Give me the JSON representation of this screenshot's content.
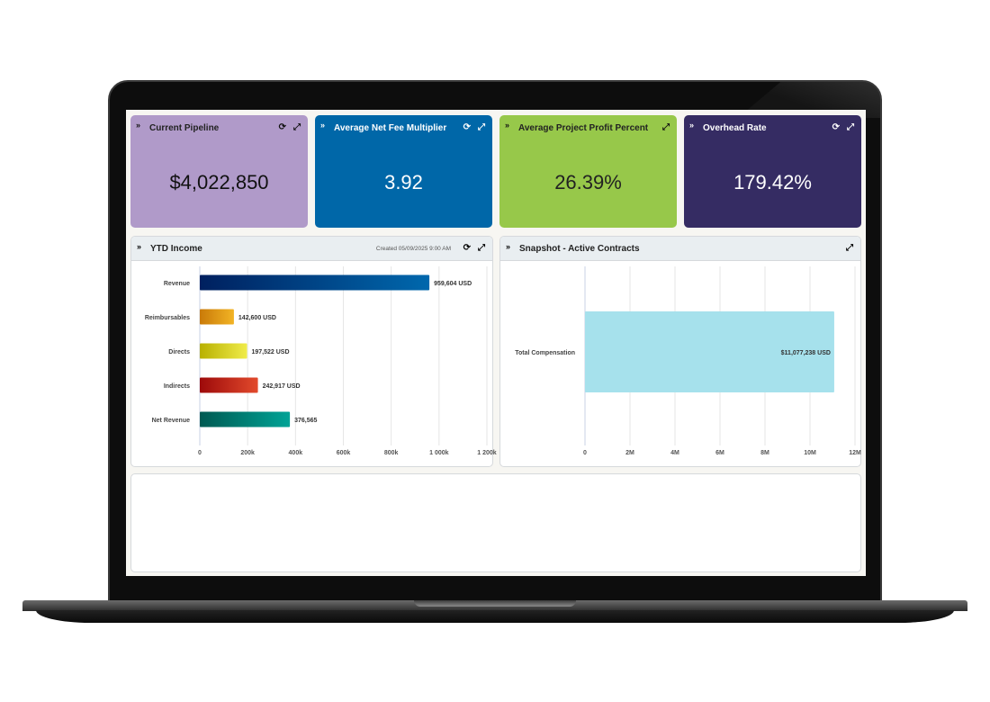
{
  "kpis": [
    {
      "title": "Current Pipeline",
      "value": "$4,022,850",
      "color": "#b09ac9",
      "text_color": "#111111",
      "refresh": true
    },
    {
      "title": "Average Net Fee Multiplier",
      "value": "3.92",
      "color": "#0067a8",
      "text_color": "#ffffff",
      "refresh": true
    },
    {
      "title": "Average Project Profit Percent",
      "value": "26.39%",
      "color": "#97c84a",
      "text_color": "#222222",
      "refresh": false
    },
    {
      "title": "Overhead Rate",
      "value": "179.42%",
      "color": "#352c63",
      "text_color": "#ffffff",
      "refresh": true
    }
  ],
  "ytd": {
    "title": "YTD Income",
    "created": "Created 05/09/2025 9:00 AM"
  },
  "snapshot": {
    "title": "Snapshot - Active Contracts"
  },
  "icons": {
    "collapse": "double-chevron-down-icon",
    "refresh": "refresh-icon",
    "expand": "expand-icon"
  },
  "chart_data": [
    {
      "type": "bar",
      "orientation": "horizontal",
      "title": "YTD Income",
      "categories": [
        "Revenue",
        "Reimbursables",
        "Directs",
        "Indirects",
        "Net Revenue"
      ],
      "values": [
        959604,
        142600,
        197522,
        242917,
        376565
      ],
      "data_labels": [
        "959,604 USD",
        "142,600 USD",
        "197,522 USD",
        "242,917 USD",
        "376,565"
      ],
      "colors": [
        [
          "#00205f",
          "#0068ad"
        ],
        [
          "#c97a08",
          "#f2b425"
        ],
        [
          "#b8b000",
          "#f0ec4a"
        ],
        [
          "#9d0a0a",
          "#e24a2c"
        ],
        [
          "#005a52",
          "#00a396"
        ]
      ],
      "xlim": [
        0,
        1200000
      ],
      "xticks": [
        0,
        200000,
        400000,
        600000,
        800000,
        1000000,
        1200000
      ],
      "xtick_labels": [
        "0",
        "200k",
        "400k",
        "600k",
        "800k",
        "1 000k",
        "1 200k"
      ],
      "grid": true
    },
    {
      "type": "bar",
      "orientation": "horizontal",
      "title": "Snapshot - Active Contracts",
      "categories": [
        "Total Compensation"
      ],
      "values": [
        11077238
      ],
      "data_labels": [
        "$11,077,238 USD"
      ],
      "colors": [
        [
          "#a6e1ec",
          "#a6e1ec"
        ]
      ],
      "xlim": [
        0,
        12000000
      ],
      "xticks": [
        0,
        2000000,
        4000000,
        6000000,
        8000000,
        10000000,
        12000000
      ],
      "xtick_labels": [
        "0",
        "2M",
        "4M",
        "6M",
        "8M",
        "10M",
        "12M"
      ],
      "grid": true
    }
  ]
}
